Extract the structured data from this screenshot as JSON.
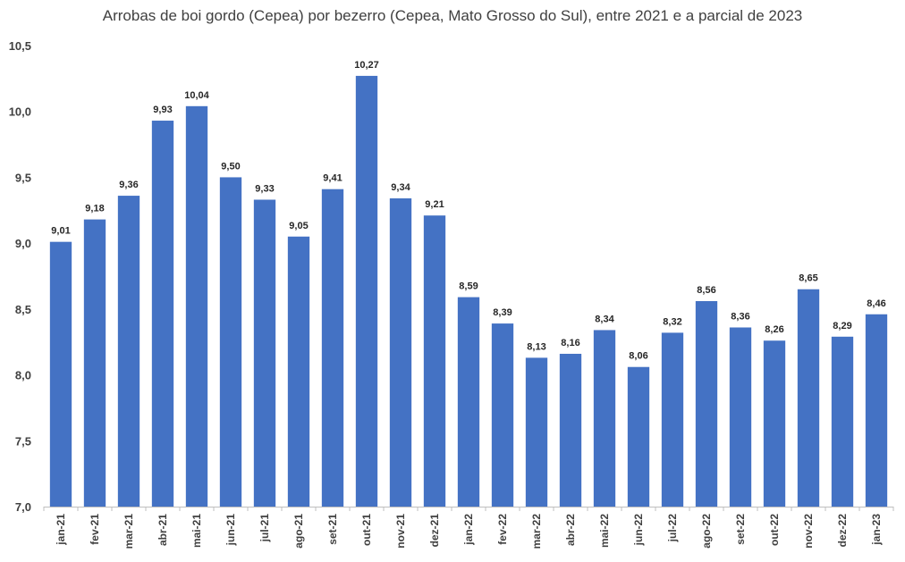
{
  "chart_data": {
    "type": "bar",
    "title": "Arrobas de boi gordo (Cepea) por bezerro (Cepea, Mato Grosso do Sul), entre 2021 e a parcial de 2023",
    "xlabel": "",
    "ylabel": "",
    "ylim": [
      7.0,
      10.5
    ],
    "yticks": [
      "7,0",
      "7,5",
      "8,0",
      "8,5",
      "9,0",
      "9,5",
      "10,0",
      "10,5"
    ],
    "ytick_values": [
      7.0,
      7.5,
      8.0,
      8.5,
      9.0,
      9.5,
      10.0,
      10.5
    ],
    "categories": [
      "jan-21",
      "fev-21",
      "mar-21",
      "abr-21",
      "mai-21",
      "jun-21",
      "jul-21",
      "ago-21",
      "set-21",
      "out-21",
      "nov-21",
      "dez-21",
      "jan-22",
      "fev-22",
      "mar-22",
      "abr-22",
      "mai-22",
      "jun-22",
      "jul-22",
      "ago-22",
      "set-22",
      "out-22",
      "nov-22",
      "dez-22",
      "jan-23"
    ],
    "values": [
      9.01,
      9.18,
      9.36,
      9.93,
      10.04,
      9.5,
      9.33,
      9.05,
      9.41,
      10.27,
      9.34,
      9.21,
      8.59,
      8.39,
      8.13,
      8.16,
      8.34,
      8.06,
      8.32,
      8.56,
      8.36,
      8.26,
      8.65,
      8.29,
      8.46
    ],
    "data_labels": [
      "9,01",
      "9,18",
      "9,36",
      "9,93",
      "10,04",
      "9,50",
      "9,33",
      "9,05",
      "9,41",
      "10,27",
      "9,34",
      "9,21",
      "8,59",
      "8,39",
      "8,13",
      "8,16",
      "8,34",
      "8,06",
      "8,32",
      "8,56",
      "8,36",
      "8,26",
      "8,65",
      "8,29",
      "8,46"
    ],
    "bar_color": "#4472c4",
    "grid": false,
    "legend": "none"
  }
}
